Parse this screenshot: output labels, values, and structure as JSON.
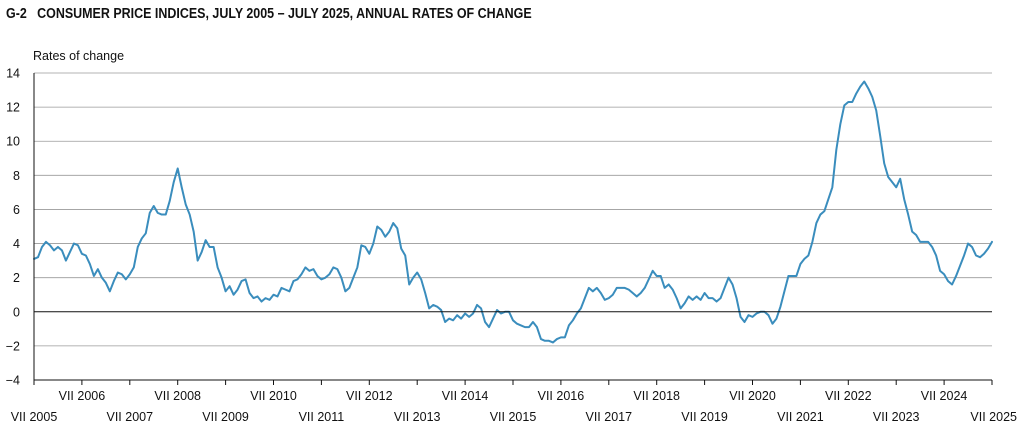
{
  "figure": {
    "code": "G-2",
    "title": "CONSUMER PRICE INDICES, JULY 2005 – JULY 2025, ANNUAL RATES OF CHANGE"
  },
  "colors": {
    "series": "#3a8dbd",
    "grid": "#9a9a9a",
    "axis": "#111111"
  },
  "chart_data": {
    "type": "line",
    "title": "CONSUMER PRICE INDICES, JULY 2005 – JULY 2025, ANNUAL RATES OF CHANGE",
    "ylabel": "Rates of change",
    "xlabel": "",
    "ylim": [
      -4,
      14
    ],
    "yticks": [
      -4,
      -2,
      0,
      2,
      4,
      6,
      8,
      10,
      12,
      14
    ],
    "grid": true,
    "legend": "none",
    "x_start": "2005-07",
    "x_end": "2025-07",
    "xticks_top": [
      "VII 2006",
      "VII 2008",
      "VII 2010",
      "VII 2012",
      "VII 2014",
      "VII 2016",
      "VII 2018",
      "VII 2020",
      "VII 2022",
      "VII 2024"
    ],
    "xticks_bottom": [
      "VII 2005",
      "VII 2007",
      "VII 2009",
      "VII 2011",
      "VII 2013",
      "VII 2015",
      "VII 2017",
      "VII 2019",
      "VII 2021",
      "VII 2023",
      "VII 2025"
    ],
    "series": [
      {
        "values": [
          3.1,
          3.2,
          3.8,
          4.1,
          3.9,
          3.6,
          3.8,
          3.6,
          3.0,
          3.5,
          4.0,
          3.9,
          3.4,
          3.3,
          2.8,
          2.1,
          2.5,
          2.0,
          1.7,
          1.2,
          1.8,
          2.3,
          2.2,
          1.9,
          2.2,
          2.6,
          3.8,
          4.3,
          4.6,
          5.8,
          6.2,
          5.8,
          5.7,
          5.7,
          6.5,
          7.6,
          8.4,
          7.3,
          6.3,
          5.7,
          4.7,
          3.0,
          3.5,
          4.2,
          3.8,
          3.8,
          2.6,
          2.0,
          1.2,
          1.5,
          1.0,
          1.3,
          1.8,
          1.9,
          1.1,
          0.8,
          0.9,
          0.6,
          0.8,
          0.7,
          1.0,
          0.9,
          1.4,
          1.3,
          1.2,
          1.8,
          1.9,
          2.2,
          2.6,
          2.4,
          2.5,
          2.1,
          1.9,
          2.0,
          2.2,
          2.6,
          2.5,
          2.0,
          1.2,
          1.4,
          2.0,
          2.6,
          3.9,
          3.8,
          3.4,
          4.0,
          5.0,
          4.8,
          4.4,
          4.7,
          5.2,
          4.9,
          3.7,
          3.3,
          1.6,
          2.0,
          2.3,
          1.9,
          1.1,
          0.2,
          0.4,
          0.3,
          0.1,
          -0.6,
          -0.4,
          -0.5,
          -0.2,
          -0.4,
          -0.1,
          -0.3,
          -0.1,
          0.4,
          0.2,
          -0.6,
          -0.9,
          -0.4,
          0.1,
          -0.1,
          0.0,
          0.0,
          -0.5,
          -0.7,
          -0.8,
          -0.9,
          -0.9,
          -0.6,
          -0.9,
          -1.6,
          -1.7,
          -1.7,
          -1.8,
          -1.6,
          -1.5,
          -1.5,
          -0.8,
          -0.5,
          -0.1,
          0.2,
          0.8,
          1.4,
          1.2,
          1.4,
          1.1,
          0.7,
          0.8,
          1.0,
          1.4,
          1.4,
          1.4,
          1.3,
          1.1,
          0.9,
          1.1,
          1.4,
          1.9,
          2.4,
          2.1,
          2.1,
          1.4,
          1.6,
          1.3,
          0.8,
          0.2,
          0.5,
          0.9,
          0.7,
          0.9,
          0.7,
          1.1,
          0.8,
          0.8,
          0.6,
          0.8,
          1.4,
          2.0,
          1.6,
          0.8,
          -0.3,
          -0.6,
          -0.2,
          -0.3,
          -0.1,
          0.0,
          0.0,
          -0.2,
          -0.7,
          -0.4,
          0.3,
          1.2,
          2.1,
          2.1,
          2.1,
          2.8,
          3.1,
          3.3,
          4.1,
          5.2,
          5.7,
          5.9,
          6.6,
          7.3,
          9.5,
          11.0,
          12.1,
          12.3,
          12.3,
          12.8,
          13.2,
          13.5,
          13.1,
          12.6,
          11.8,
          10.3,
          8.7,
          7.9,
          7.6,
          7.3,
          7.8,
          6.6,
          5.7,
          4.7,
          4.5,
          4.1,
          4.1,
          4.1,
          3.8,
          3.3,
          2.4,
          2.2,
          1.8,
          1.6,
          2.1,
          2.7,
          3.3,
          4.0,
          3.8,
          3.3,
          3.2,
          3.4,
          3.7,
          4.1
        ]
      }
    ]
  }
}
